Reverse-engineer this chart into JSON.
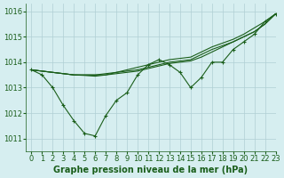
{
  "title": "Graphe pression niveau de la mer (hPa)",
  "bg_color": "#d6eef0",
  "grid_color": "#b0cfd4",
  "line_color": "#1a5e1a",
  "xlim": [
    -0.5,
    23
  ],
  "ylim": [
    1010.5,
    1016.3
  ],
  "xticks": [
    0,
    1,
    2,
    3,
    4,
    5,
    6,
    7,
    8,
    9,
    10,
    11,
    12,
    13,
    14,
    15,
    16,
    17,
    18,
    19,
    20,
    21,
    22,
    23
  ],
  "yticks": [
    1011,
    1012,
    1013,
    1014,
    1015,
    1016
  ],
  "series": [
    {
      "y": [
        1013.7,
        1013.5,
        1013.0,
        1012.3,
        1011.7,
        1011.2,
        1011.1,
        1011.9,
        1012.5,
        1012.8,
        1013.5,
        1013.9,
        1014.1,
        1013.9,
        1013.6,
        1013.0,
        1013.4,
        1014.0,
        1014.0,
        1014.5,
        1014.8,
        1015.1,
        1015.6,
        1015.9
      ],
      "marker": true
    },
    {
      "y": [
        1013.7,
        1013.65,
        1013.6,
        1013.55,
        1013.5,
        1013.5,
        1013.5,
        1013.5,
        1013.6,
        1013.7,
        1013.8,
        1013.9,
        1014.0,
        1014.1,
        1014.15,
        1014.2,
        1014.4,
        1014.6,
        1014.75,
        1014.9,
        1015.1,
        1015.35,
        1015.6,
        1015.9
      ],
      "marker": false
    },
    {
      "y": [
        1013.7,
        1013.65,
        1013.6,
        1013.55,
        1013.5,
        1013.5,
        1013.5,
        1013.55,
        1013.6,
        1013.65,
        1013.7,
        1013.8,
        1013.9,
        1014.0,
        1014.05,
        1014.1,
        1014.3,
        1014.5,
        1014.65,
        1014.8,
        1015.0,
        1015.2,
        1015.5,
        1015.9
      ],
      "marker": false
    },
    {
      "y": [
        1013.7,
        1013.65,
        1013.6,
        1013.55,
        1013.5,
        1013.48,
        1013.45,
        1013.5,
        1013.55,
        1013.6,
        1013.65,
        1013.75,
        1013.85,
        1013.95,
        1014.0,
        1014.05,
        1014.2,
        1014.4,
        1014.6,
        1014.8,
        1015.0,
        1015.2,
        1015.5,
        1015.9
      ],
      "marker": false
    }
  ],
  "tick_fontsize": 6,
  "title_fontsize": 7
}
